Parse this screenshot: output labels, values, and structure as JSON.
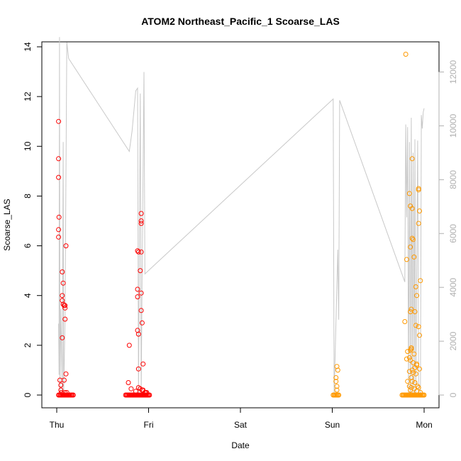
{
  "chart_data": {
    "type": "scatter",
    "title": "ATOM2 Northeast_Pacific_1 Scoarse_LAS",
    "xlabel": "Date",
    "ylabel": "Scoarse_LAS",
    "x_ticks": [
      "Thu",
      "Fri",
      "Sat",
      "Sun",
      "Mon"
    ],
    "ylim": [
      0,
      14
    ],
    "y_ticks": [
      0,
      2,
      4,
      6,
      8,
      10,
      12,
      14
    ],
    "y2lim": [
      0,
      13200
    ],
    "y2_ticks": [
      0,
      2000,
      4000,
      6000,
      8000,
      10000,
      12000
    ],
    "grid": false,
    "colors": {
      "red": "#ff0000",
      "orange": "#ff9900",
      "line": "#c8c8c8"
    },
    "series": [
      {
        "color": "#ff0000",
        "points": [
          [
            0.02,
            11.0
          ],
          [
            0.02,
            9.5
          ],
          [
            0.02,
            8.75
          ],
          [
            0.025,
            7.15
          ],
          [
            0.02,
            6.65
          ],
          [
            0.02,
            6.35
          ],
          [
            0.035,
            0.6
          ],
          [
            0.045,
            0.4
          ],
          [
            0.045,
            0.2
          ],
          [
            0.05,
            0.1
          ],
          [
            0.02,
            0.0
          ],
          [
            0.03,
            0.0
          ],
          [
            0.04,
            0.0
          ],
          [
            0.05,
            0.0
          ],
          [
            0.06,
            0.0
          ],
          [
            0.07,
            0.0
          ],
          [
            0.08,
            0.0
          ],
          [
            0.09,
            0.0
          ],
          [
            0.1,
            0.0
          ],
          [
            0.11,
            0.0
          ],
          [
            0.12,
            0.0
          ],
          [
            0.13,
            0.0
          ],
          [
            0.14,
            0.0
          ],
          [
            0.15,
            0.0
          ],
          [
            0.16,
            0.0
          ],
          [
            0.17,
            0.0
          ],
          [
            0.18,
            0.0
          ],
          [
            0.06,
            4.95
          ],
          [
            0.06,
            4.0
          ],
          [
            0.06,
            3.8
          ],
          [
            0.07,
            4.5
          ],
          [
            0.07,
            3.65
          ],
          [
            0.08,
            3.6
          ],
          [
            0.09,
            3.5
          ],
          [
            0.09,
            3.6
          ],
          [
            0.09,
            3.05
          ],
          [
            0.06,
            2.3
          ],
          [
            0.1,
            6.0
          ],
          [
            0.1,
            0.85
          ],
          [
            0.08,
            0.6
          ],
          [
            0.09,
            0.1
          ],
          [
            0.11,
            0.1
          ],
          [
            0.75,
            0.0
          ],
          [
            0.76,
            0.0
          ],
          [
            0.77,
            0.0
          ],
          [
            0.78,
            0.0
          ],
          [
            0.79,
            0.0
          ],
          [
            0.8,
            0.0
          ],
          [
            0.81,
            0.0
          ],
          [
            0.82,
            0.0
          ],
          [
            0.83,
            0.0
          ],
          [
            0.84,
            0.0
          ],
          [
            0.85,
            0.0
          ],
          [
            0.86,
            0.0
          ],
          [
            0.87,
            0.0
          ],
          [
            0.88,
            0.0
          ],
          [
            0.89,
            0.0
          ],
          [
            0.9,
            0.0
          ],
          [
            0.91,
            0.0
          ],
          [
            0.92,
            0.0
          ],
          [
            0.93,
            0.0
          ],
          [
            0.94,
            0.0
          ],
          [
            0.95,
            0.0
          ],
          [
            0.96,
            0.0
          ],
          [
            0.97,
            0.0
          ],
          [
            0.98,
            0.0
          ],
          [
            0.99,
            0.0
          ],
          [
            1.0,
            0.0
          ],
          [
            1.01,
            0.0
          ],
          [
            0.79,
            2.0
          ],
          [
            0.78,
            0.5
          ],
          [
            0.81,
            0.25
          ],
          [
            0.86,
            0.15
          ],
          [
            0.89,
            0.3
          ],
          [
            0.91,
            0.25
          ],
          [
            0.96,
            0.1
          ],
          [
            0.97,
            0.1
          ],
          [
            0.98,
            0.1
          ],
          [
            0.88,
            5.8
          ],
          [
            0.89,
            5.75
          ],
          [
            0.92,
            5.75
          ],
          [
            0.88,
            4.25
          ],
          [
            0.88,
            3.95
          ],
          [
            0.92,
            4.1
          ],
          [
            0.91,
            5.0
          ],
          [
            0.92,
            7.3
          ],
          [
            0.92,
            7.0
          ],
          [
            0.92,
            6.9
          ],
          [
            0.92,
            3.4
          ],
          [
            0.88,
            2.6
          ],
          [
            0.89,
            2.45
          ],
          [
            0.93,
            2.9
          ],
          [
            0.89,
            1.05
          ],
          [
            0.94,
            1.25
          ],
          [
            0.93,
            0.2
          ],
          [
            0.94,
            0.2
          ]
        ]
      },
      {
        "color": "#ff9900",
        "points": [
          [
            3.01,
            0.0
          ],
          [
            3.02,
            0.0
          ],
          [
            3.03,
            0.0
          ],
          [
            3.04,
            0.0
          ],
          [
            3.05,
            0.0
          ],
          [
            3.06,
            0.0
          ],
          [
            3.07,
            0.0
          ],
          [
            3.05,
            1.15
          ],
          [
            3.06,
            1.0
          ],
          [
            3.04,
            0.7
          ],
          [
            3.04,
            0.55
          ],
          [
            3.05,
            0.35
          ],
          [
            3.05,
            0.2
          ],
          [
            3.76,
            0.0
          ],
          [
            3.77,
            0.0
          ],
          [
            3.78,
            0.0
          ],
          [
            3.79,
            0.0
          ],
          [
            3.8,
            0.0
          ],
          [
            3.81,
            0.0
          ],
          [
            3.82,
            0.0
          ],
          [
            3.83,
            0.0
          ],
          [
            3.84,
            0.0
          ],
          [
            3.85,
            0.0
          ],
          [
            3.86,
            0.0
          ],
          [
            3.87,
            0.0
          ],
          [
            3.88,
            0.0
          ],
          [
            3.89,
            0.0
          ],
          [
            3.9,
            0.0
          ],
          [
            3.91,
            0.0
          ],
          [
            3.92,
            0.0
          ],
          [
            3.93,
            0.0
          ],
          [
            3.94,
            0.0
          ],
          [
            3.95,
            0.0
          ],
          [
            3.96,
            0.0
          ],
          [
            3.97,
            0.0
          ],
          [
            3.98,
            0.0
          ],
          [
            3.99,
            0.0
          ],
          [
            4.0,
            0.0
          ],
          [
            3.8,
            13.7
          ],
          [
            3.87,
            9.5
          ],
          [
            3.94,
            8.3
          ],
          [
            3.94,
            8.25
          ],
          [
            3.84,
            8.1
          ],
          [
            3.85,
            7.6
          ],
          [
            3.87,
            7.5
          ],
          [
            3.95,
            7.4
          ],
          [
            3.94,
            6.9
          ],
          [
            3.87,
            6.3
          ],
          [
            3.88,
            6.25
          ],
          [
            3.85,
            5.95
          ],
          [
            3.89,
            5.55
          ],
          [
            3.81,
            5.45
          ],
          [
            3.96,
            4.6
          ],
          [
            3.91,
            4.35
          ],
          [
            3.92,
            4.0
          ],
          [
            3.85,
            3.35
          ],
          [
            3.9,
            3.35
          ],
          [
            3.86,
            3.45
          ],
          [
            3.91,
            2.8
          ],
          [
            3.94,
            2.75
          ],
          [
            3.79,
            2.95
          ],
          [
            3.95,
            2.4
          ],
          [
            3.85,
            1.8
          ],
          [
            3.86,
            1.85
          ],
          [
            3.86,
            1.9
          ],
          [
            3.82,
            1.75
          ],
          [
            3.89,
            1.65
          ],
          [
            3.84,
            1.5
          ],
          [
            3.85,
            1.4
          ],
          [
            3.81,
            1.45
          ],
          [
            3.88,
            1.3
          ],
          [
            3.92,
            1.25
          ],
          [
            3.92,
            1.2
          ],
          [
            3.9,
            1.1
          ],
          [
            3.95,
            1.05
          ],
          [
            3.87,
            1.0
          ],
          [
            3.84,
            0.95
          ],
          [
            3.88,
            0.9
          ],
          [
            3.91,
            0.85
          ],
          [
            3.86,
            0.7
          ],
          [
            3.87,
            0.55
          ],
          [
            3.9,
            0.5
          ],
          [
            3.82,
            0.55
          ],
          [
            3.84,
            0.35
          ],
          [
            3.86,
            0.3
          ],
          [
            3.93,
            0.35
          ],
          [
            3.94,
            0.3
          ],
          [
            3.85,
            0.2
          ],
          [
            3.89,
            0.25
          ],
          [
            3.92,
            0.15
          ],
          [
            3.96,
            0.1
          ]
        ]
      }
    ],
    "line2": [
      [
        0.02,
        2650
      ],
      [
        0.025,
        750
      ],
      [
        0.03,
        13300
      ],
      [
        0.035,
        0
      ],
      [
        0.045,
        3200
      ],
      [
        0.06,
        150
      ],
      [
        0.07,
        9400
      ],
      [
        0.075,
        0
      ],
      [
        0.09,
        2800
      ],
      [
        0.11,
        13100
      ],
      [
        0.13,
        12500
      ],
      [
        0.79,
        9050
      ],
      [
        0.82,
        9800
      ],
      [
        0.86,
        11300
      ],
      [
        0.88,
        11400
      ],
      [
        0.89,
        0
      ],
      [
        0.91,
        11200
      ],
      [
        0.92,
        0
      ],
      [
        0.93,
        4500
      ],
      [
        0.95,
        12000
      ],
      [
        0.96,
        4500
      ],
      [
        3.01,
        11000
      ],
      [
        3.02,
        0
      ],
      [
        3.06,
        5400
      ],
      [
        3.07,
        2800
      ],
      [
        3.08,
        10950
      ],
      [
        3.79,
        4200
      ],
      [
        3.8,
        10050
      ],
      [
        3.81,
        6600
      ],
      [
        3.82,
        9950
      ],
      [
        3.83,
        0
      ],
      [
        3.84,
        9400
      ],
      [
        3.85,
        0
      ],
      [
        3.86,
        10300
      ],
      [
        3.87,
        0
      ],
      [
        3.88,
        9000
      ],
      [
        3.89,
        0
      ],
      [
        3.9,
        9500
      ],
      [
        3.91,
        0
      ],
      [
        3.93,
        9450
      ],
      [
        3.94,
        0
      ],
      [
        3.96,
        0
      ],
      [
        3.97,
        10400
      ],
      [
        3.98,
        9900
      ],
      [
        3.99,
        10500
      ],
      [
        4.0,
        10650
      ]
    ]
  }
}
